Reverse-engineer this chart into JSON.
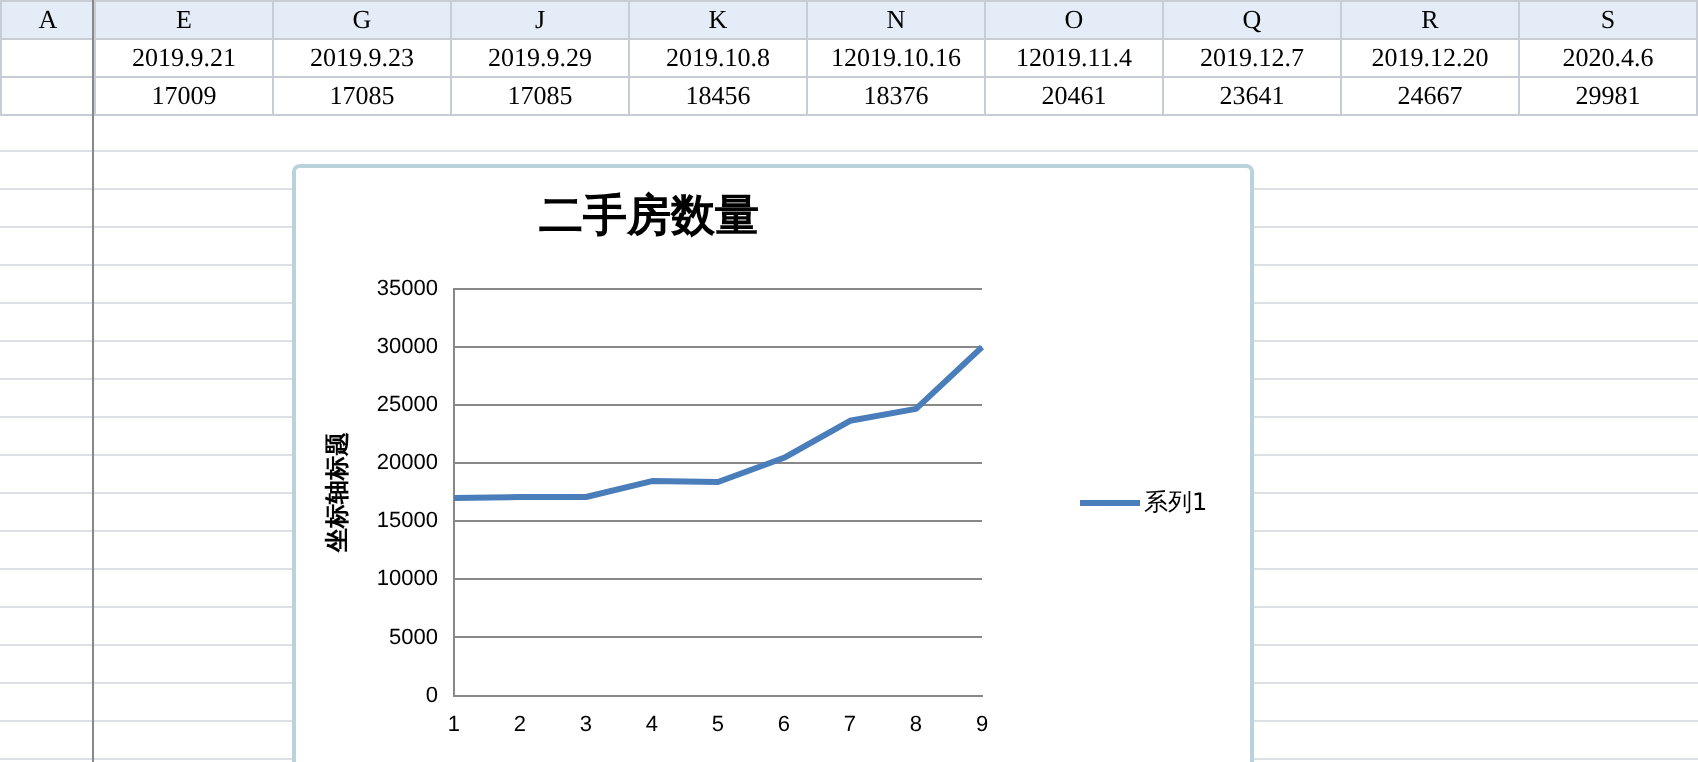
{
  "chart_data": {
    "type": "line",
    "title": "二手房数量",
    "ylabel": "坐标轴标题",
    "categories": [
      "1",
      "2",
      "3",
      "4",
      "5",
      "6",
      "7",
      "8",
      "9"
    ],
    "series": [
      {
        "name": "系列1",
        "color": "#4a7ebb",
        "values": [
          17009,
          17085,
          17085,
          18456,
          18376,
          20461,
          23641,
          24667,
          29981
        ]
      }
    ],
    "ylim": [
      0,
      35000
    ],
    "yticks": [
      0,
      5000,
      10000,
      15000,
      20000,
      25000,
      30000,
      35000
    ],
    "grid": "y",
    "legend": "right",
    "marker": "none",
    "annotations": [
      "A",
      "E",
      "G",
      "J",
      "K",
      "N",
      "O",
      "Q",
      "R",
      "S",
      "2019.9.21",
      "2019.9.23",
      "2019.9.29",
      "2019.10.8",
      "12019.10.16",
      "12019.11.4",
      "2019.12.7",
      "2019.12.20",
      "2020.4.6",
      "17009",
      "17085",
      "17085",
      "18456",
      "18376",
      "20461",
      "23641",
      "24667",
      "29981"
    ]
  }
}
